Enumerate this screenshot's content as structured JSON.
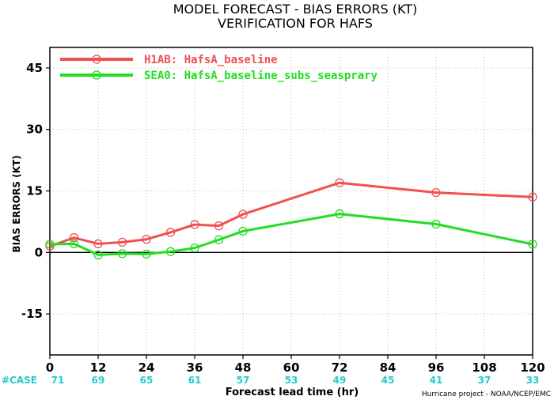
{
  "chart_data": {
    "type": "line",
    "title": "MODEL FORECAST - BIAS ERRORS (KT)",
    "subtitle": "VERIFICATION FOR HAFS",
    "xlabel": "Forecast lead time (hr)",
    "ylabel": "BIAS ERRORS (KT)",
    "xlim": [
      0,
      120
    ],
    "ylim": [
      -25,
      50
    ],
    "xticks": [
      0,
      12,
      24,
      36,
      48,
      60,
      72,
      84,
      96,
      108,
      120
    ],
    "yticks": [
      -15,
      0,
      15,
      30,
      45
    ],
    "grid": true,
    "legend_position": "top-left",
    "series": [
      {
        "name": "H1AB: HafsA_baseline",
        "color": "#f05050",
        "x": [
          0,
          6,
          12,
          18,
          24,
          30,
          36,
          42,
          48,
          72,
          96,
          120
        ],
        "y": [
          1.5,
          3.6,
          2.1,
          2.5,
          3.2,
          4.9,
          6.8,
          6.5,
          9.3,
          17.0,
          14.6,
          13.5
        ]
      },
      {
        "name": "SEA0: HafsA_baseline_subs_seasprary",
        "color": "#22dd22",
        "x": [
          0,
          6,
          12,
          18,
          24,
          30,
          36,
          42,
          48,
          72,
          96,
          120
        ],
        "y": [
          2.0,
          2.1,
          -0.6,
          -0.3,
          -0.4,
          0.2,
          1.1,
          3.1,
          5.2,
          9.4,
          6.9,
          2.0
        ]
      }
    ],
    "cases_label": "#CASE",
    "cases_color": "#22cccc",
    "cases": [
      {
        "x": 0,
        "n": "71"
      },
      {
        "x": 12,
        "n": "69"
      },
      {
        "x": 24,
        "n": "65"
      },
      {
        "x": 36,
        "n": "61"
      },
      {
        "x": 48,
        "n": "57"
      },
      {
        "x": 60,
        "n": "53"
      },
      {
        "x": 72,
        "n": "49"
      },
      {
        "x": 84,
        "n": "45"
      },
      {
        "x": 96,
        "n": "41"
      },
      {
        "x": 108,
        "n": "37"
      },
      {
        "x": 120,
        "n": "33"
      }
    ],
    "credit": "Hurricane project - NOAA/NCEP/EMC"
  }
}
